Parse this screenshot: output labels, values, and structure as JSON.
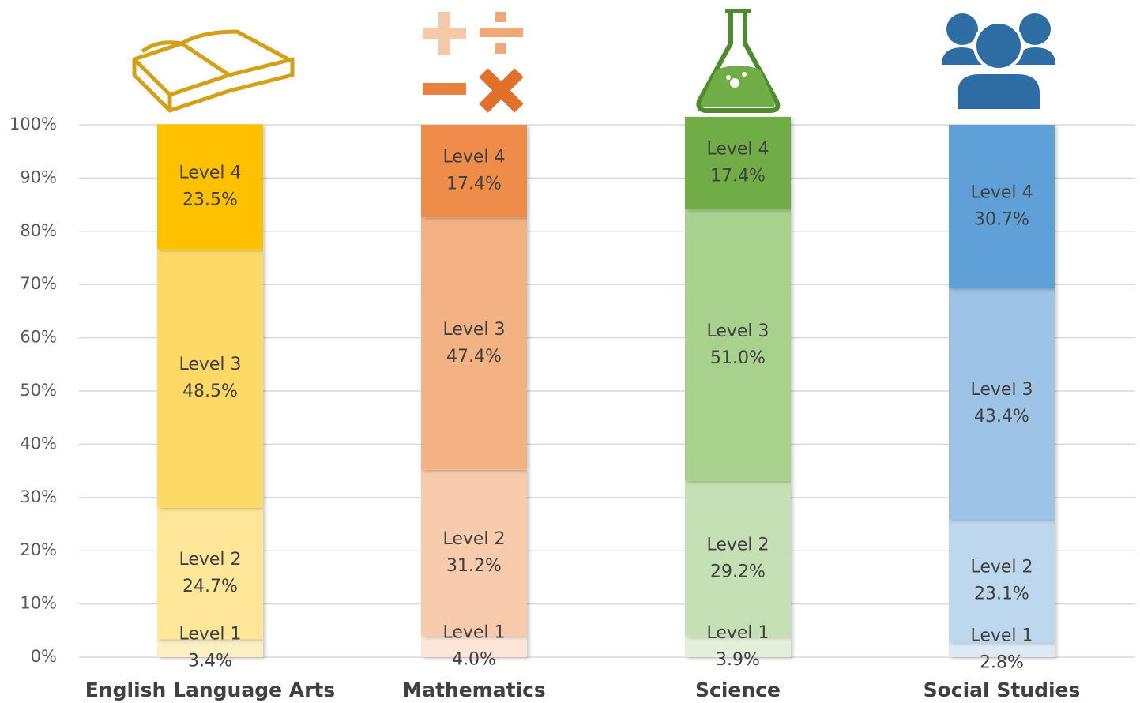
{
  "chart_data": {
    "type": "bar",
    "stacked": true,
    "grid": true,
    "categories": [
      "English Language Arts",
      "Mathematics",
      "Science",
      "Social Studies"
    ],
    "series": [
      {
        "name": "Level 1",
        "colors": [
          "#fdefc4",
          "#fbe5d6",
          "#e2f0d9",
          "#deebf7"
        ],
        "values": [
          3.4,
          4.0,
          3.9,
          2.8
        ],
        "value_labels": [
          "3.4%",
          "4.0%",
          "3.9%",
          "2.8%"
        ]
      },
      {
        "name": "Level 2",
        "colors": [
          "#ffe699",
          "#f8cbad",
          "#c5e0b4",
          "#bdd7ee"
        ],
        "values": [
          24.7,
          31.2,
          29.2,
          23.1
        ],
        "value_labels": [
          "24.7%",
          "31.2%",
          "29.2%",
          "23.1%"
        ]
      },
      {
        "name": "Level 3",
        "colors": [
          "#ffd966",
          "#f4b183",
          "#a9d18e",
          "#9dc3e6"
        ],
        "values": [
          48.5,
          47.4,
          51.0,
          43.4
        ],
        "value_labels": [
          "48.5%",
          "47.4%",
          "51.0%",
          "43.4%"
        ]
      },
      {
        "name": "Level 4",
        "colors": [
          "#ffc000",
          "#ef8c4a",
          "#70ad47",
          "#5fa0d8"
        ],
        "values": [
          23.5,
          17.4,
          17.4,
          30.7
        ],
        "value_labels": [
          "23.5%",
          "17.4%",
          "17.4%",
          "30.7%"
        ]
      }
    ],
    "ylim": [
      0,
      100
    ],
    "yticks": [
      {
        "value": 0,
        "label": "0%"
      },
      {
        "value": 10,
        "label": "10%"
      },
      {
        "value": 20,
        "label": "20%"
      },
      {
        "value": 30,
        "label": "30%"
      },
      {
        "value": 40,
        "label": "40%"
      },
      {
        "value": 50,
        "label": "50%"
      },
      {
        "value": 60,
        "label": "60%"
      },
      {
        "value": 70,
        "label": "70%"
      },
      {
        "value": 80,
        "label": "80%"
      },
      {
        "value": 90,
        "label": "90%"
      },
      {
        "value": 100,
        "label": "100%"
      }
    ]
  }
}
